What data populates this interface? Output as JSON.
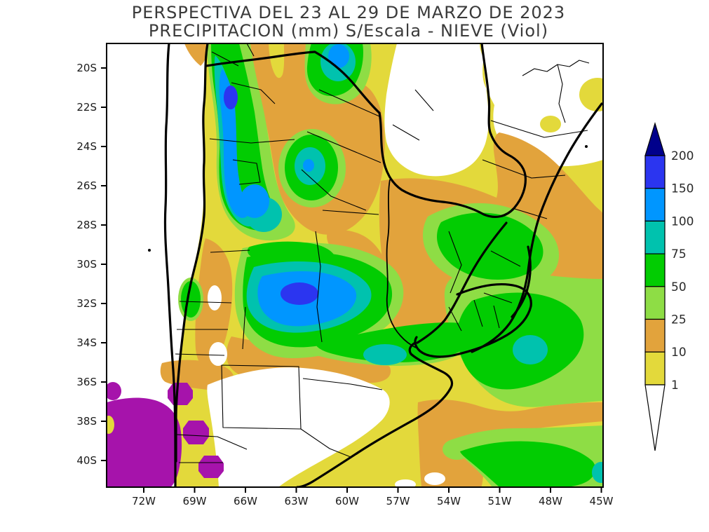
{
  "title": {
    "line1": "PERSPECTIVA DEL 23 AL 29  DE MARZO DE 2023",
    "line2": "PRECIPITACION (mm) S/Escala - NIEVE (Viol)"
  },
  "axes": {
    "x_ticks": [
      "72W",
      "69W",
      "66W",
      "63W",
      "60W",
      "57W",
      "54W",
      "51W",
      "48W",
      "45W"
    ],
    "y_ticks": [
      "20S",
      "22S",
      "24S",
      "26S",
      "28S",
      "30S",
      "32S",
      "34S",
      "36S",
      "38S",
      "40S"
    ]
  },
  "colorbar": {
    "labels": [
      "200",
      "150",
      "100",
      "75",
      "50",
      "25",
      "10",
      "1"
    ],
    "colors": [
      "#2B35F0",
      "#0096FF",
      "#00C2AE",
      "#02CC02",
      "#8EDD45",
      "#E2A33C",
      "#E3D93B"
    ],
    "above_color": "#00008B",
    "below_color": "#FFFFFF"
  },
  "palette": {
    "lt1": "#FFFFFF",
    "1_10": "#E3D93B",
    "10_25": "#E2A33C",
    "25_50": "#8EDD45",
    "50_75": "#02CC02",
    "75_100": "#00C2AE",
    "100_150": "#0096FF",
    "150_200": "#2B35F0",
    "gt200": "#00008B",
    "snow_violet": "#A613AB"
  },
  "chart_data": {
    "type": "heatmap",
    "subtype": "filled-contour-precipitation-map",
    "variable": "PRECIPITACION (mm)",
    "note": "S/Escala - NIEVE (Viol)",
    "period": "23 AL 29 DE MARZO DE 2023",
    "legend_levels_mm": [
      1,
      10,
      25,
      50,
      75,
      100,
      150,
      200
    ],
    "legend_position": "right",
    "x_axis_ticks_lon": [
      "72W",
      "69W",
      "66W",
      "63W",
      "60W",
      "57W",
      "54W",
      "51W",
      "48W",
      "45W"
    ],
    "y_axis_ticks_lat": [
      "20S",
      "22S",
      "24S",
      "26S",
      "28S",
      "30S",
      "32S",
      "34S",
      "36S",
      "38S",
      "40S"
    ],
    "grid": "off",
    "maxima": [
      {
        "location": "NW Argentina band ~66.9W 21.5S-27S",
        "value_mm": "100-150, local core 150-200"
      },
      {
        "location": "central Argentina (Cordoba) ~62.8W 31.5S",
        "value_mm": "150-200"
      },
      {
        "location": "top edge ~60.7W 19.8S",
        "value_mm": "100-150"
      },
      {
        "location": "satellite cell ~62.2W 25.0S",
        "value_mm": "75-100 with 100-150 dot"
      },
      {
        "location": "SE Atlantic ~49.2W 34.4S",
        "value_mm": "75-100"
      },
      {
        "location": "Rio de la Plata ~57.8W 34.6S",
        "value_mm": "75-100"
      },
      {
        "location": "bottom-right corner ~45W 40.6S",
        "value_mm": "75-100"
      }
    ],
    "minima": [
      {
        "location": "Paraguay / SE Bolivia / S Brazil north strip",
        "value_mm": "<1"
      },
      {
        "location": "central-west Argentina (La Pampa / W Buenos Aires)",
        "value_mm": "<1"
      },
      {
        "location": "Pacific coast strip of Chile",
        "value_mm": "<1"
      }
    ],
    "snow_violet_areas": [
      {
        "location": "Andes ~36S-41.3S west of 69W",
        "meaning": "NIEVE (snow)"
      }
    ]
  }
}
